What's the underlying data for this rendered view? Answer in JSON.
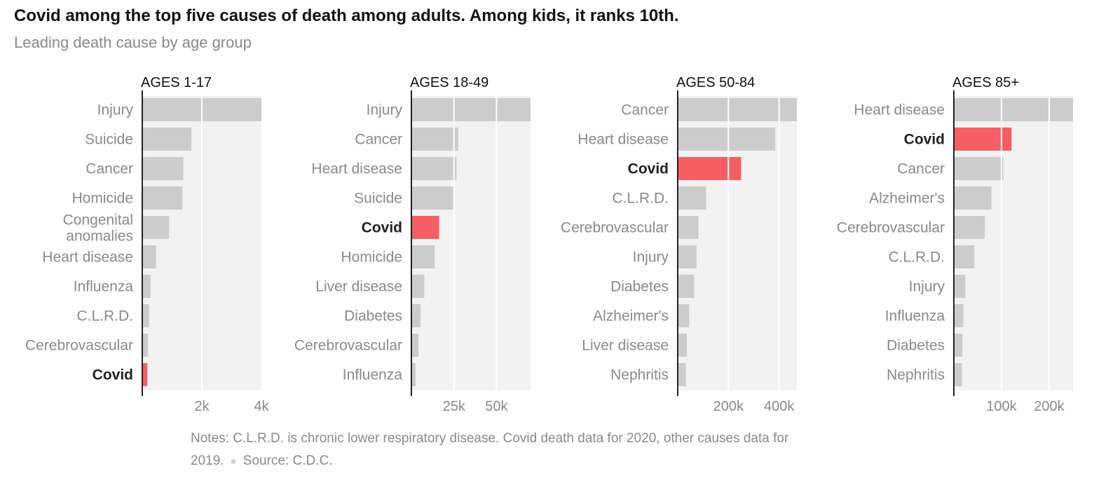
{
  "header": {
    "title": "Covid among the top five causes of death among adults. Among kids, it ranks 10th.",
    "subtitle": "Leading death cause by age group"
  },
  "notes": {
    "text": "Notes: C.L.R.D. is chronic lower respiratory disease. Covid death data for 2020, other causes data for 2019.",
    "source": "Source: C.D.C."
  },
  "colors": {
    "bar": "#cccccc",
    "highlight": "#f55f63",
    "background": "#f2f2f2",
    "gridline": "#ffffff",
    "label": "#8a8a8a",
    "highlight_label": "#222222",
    "axis": "#222222"
  },
  "chart_data": [
    {
      "type": "bar",
      "orientation": "horizontal",
      "title": "AGES 1-17",
      "categories": [
        "Injury",
        "Suicide",
        "Cancer",
        "Homicide",
        "Congenital anomalies",
        "Heart disease",
        "Influenza",
        "C.L.R.D.",
        "Cerebrovascular",
        "Covid"
      ],
      "values": [
        4050,
        1650,
        1380,
        1350,
        900,
        460,
        280,
        230,
        190,
        170
      ],
      "highlight": "Covid",
      "xlim": [
        0,
        4000
      ],
      "xticks": [
        2000,
        4000
      ],
      "xtick_labels": [
        "2k",
        "4k"
      ]
    },
    {
      "type": "bar",
      "orientation": "horizontal",
      "title": "AGES 18-49",
      "categories": [
        "Injury",
        "Cancer",
        "Heart disease",
        "Suicide",
        "Covid",
        "Homicide",
        "Liver disease",
        "Diabetes",
        "Cerebrovascular",
        "Influenza"
      ],
      "values": [
        70000,
        27500,
        26500,
        24500,
        16300,
        13700,
        7600,
        5300,
        4200,
        2500
      ],
      "highlight": "Covid",
      "xlim": [
        0,
        70000
      ],
      "xticks": [
        25000,
        50000
      ],
      "xtick_labels": [
        "25k",
        "50k"
      ]
    },
    {
      "type": "bar",
      "orientation": "horizontal",
      "title": "AGES 50-84",
      "categories": [
        "Cancer",
        "Heart disease",
        "Covid",
        "C.L.R.D.",
        "Cerebrovascular",
        "Injury",
        "Diabetes",
        "Alzheimer's",
        "Liver disease",
        "Nephritis"
      ],
      "values": [
        470000,
        385000,
        250000,
        112000,
        82000,
        74000,
        65000,
        45000,
        36000,
        32000
      ],
      "highlight": "Covid",
      "xlim": [
        0,
        470000
      ],
      "xticks": [
        200000,
        400000
      ],
      "xtick_labels": [
        "200k",
        "400k"
      ]
    },
    {
      "type": "bar",
      "orientation": "horizontal",
      "title": "AGES 85+",
      "categories": [
        "Heart disease",
        "Covid",
        "Cancer",
        "Alzheimer's",
        "Cerebrovascular",
        "C.L.R.D.",
        "Injury",
        "Influenza",
        "Diabetes",
        "Nephritis"
      ],
      "values": [
        250000,
        121000,
        104000,
        79000,
        65000,
        43000,
        24000,
        20000,
        18000,
        17000
      ],
      "highlight": "Covid",
      "xlim": [
        0,
        250000
      ],
      "xticks": [
        100000,
        200000
      ],
      "xtick_labels": [
        "100k",
        "200k"
      ]
    }
  ]
}
